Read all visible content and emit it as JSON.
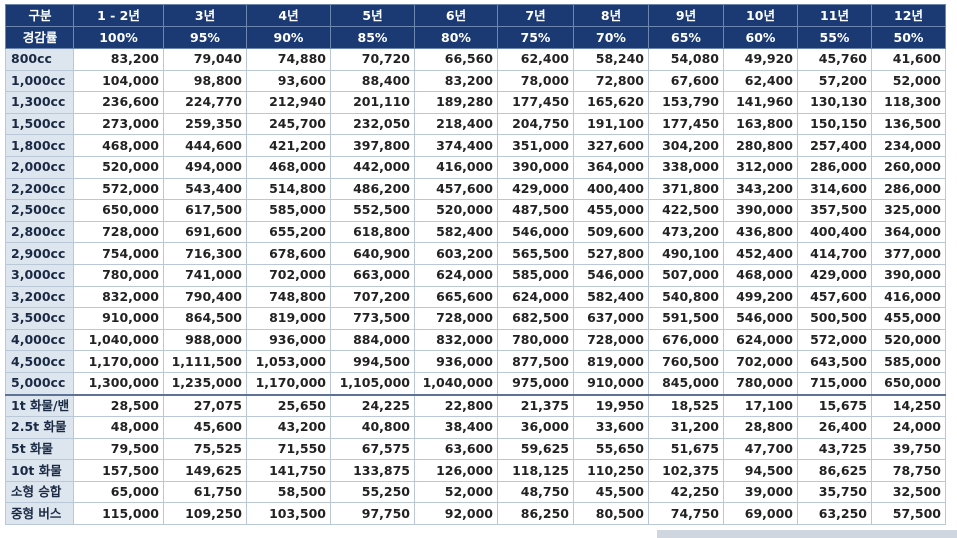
{
  "header": [
    "구분",
    "1 - 2년",
    "3년",
    "4년",
    "5년",
    "6년",
    "7년",
    "8년",
    "9년",
    "10년",
    "11년",
    "12년"
  ],
  "reduction": {
    "label": "경감률",
    "values": [
      "100%",
      "95%",
      "90%",
      "85%",
      "80%",
      "75%",
      "70%",
      "65%",
      "60%",
      "55%",
      "50%"
    ]
  },
  "passenger_rows": [
    {
      "label": "800cc",
      "values": [
        "83,200",
        "79,040",
        "74,880",
        "70,720",
        "66,560",
        "62,400",
        "58,240",
        "54,080",
        "49,920",
        "45,760",
        "41,600"
      ]
    },
    {
      "label": "1,000cc",
      "values": [
        "104,000",
        "98,800",
        "93,600",
        "88,400",
        "83,200",
        "78,000",
        "72,800",
        "67,600",
        "62,400",
        "57,200",
        "52,000"
      ]
    },
    {
      "label": "1,300cc",
      "values": [
        "236,600",
        "224,770",
        "212,940",
        "201,110",
        "189,280",
        "177,450",
        "165,620",
        "153,790",
        "141,960",
        "130,130",
        "118,300"
      ]
    },
    {
      "label": "1,500cc",
      "values": [
        "273,000",
        "259,350",
        "245,700",
        "232,050",
        "218,400",
        "204,750",
        "191,100",
        "177,450",
        "163,800",
        "150,150",
        "136,500"
      ]
    },
    {
      "label": "1,800cc",
      "values": [
        "468,000",
        "444,600",
        "421,200",
        "397,800",
        "374,400",
        "351,000",
        "327,600",
        "304,200",
        "280,800",
        "257,400",
        "234,000"
      ]
    },
    {
      "label": "2,000cc",
      "values": [
        "520,000",
        "494,000",
        "468,000",
        "442,000",
        "416,000",
        "390,000",
        "364,000",
        "338,000",
        "312,000",
        "286,000",
        "260,000"
      ]
    },
    {
      "label": "2,200cc",
      "values": [
        "572,000",
        "543,400",
        "514,800",
        "486,200",
        "457,600",
        "429,000",
        "400,400",
        "371,800",
        "343,200",
        "314,600",
        "286,000"
      ]
    },
    {
      "label": "2,500cc",
      "values": [
        "650,000",
        "617,500",
        "585,000",
        "552,500",
        "520,000",
        "487,500",
        "455,000",
        "422,500",
        "390,000",
        "357,500",
        "325,000"
      ]
    },
    {
      "label": "2,800cc",
      "values": [
        "728,000",
        "691,600",
        "655,200",
        "618,800",
        "582,400",
        "546,000",
        "509,600",
        "473,200",
        "436,800",
        "400,400",
        "364,000"
      ]
    },
    {
      "label": "2,900cc",
      "values": [
        "754,000",
        "716,300",
        "678,600",
        "640,900",
        "603,200",
        "565,500",
        "527,800",
        "490,100",
        "452,400",
        "414,700",
        "377,000"
      ]
    },
    {
      "label": "3,000cc",
      "values": [
        "780,000",
        "741,000",
        "702,000",
        "663,000",
        "624,000",
        "585,000",
        "546,000",
        "507,000",
        "468,000",
        "429,000",
        "390,000"
      ]
    },
    {
      "label": "3,200cc",
      "values": [
        "832,000",
        "790,400",
        "748,800",
        "707,200",
        "665,600",
        "624,000",
        "582,400",
        "540,800",
        "499,200",
        "457,600",
        "416,000"
      ]
    },
    {
      "label": "3,500cc",
      "values": [
        "910,000",
        "864,500",
        "819,000",
        "773,500",
        "728,000",
        "682,500",
        "637,000",
        "591,500",
        "546,000",
        "500,500",
        "455,000"
      ]
    },
    {
      "label": "4,000cc",
      "values": [
        "1,040,000",
        "988,000",
        "936,000",
        "884,000",
        "832,000",
        "780,000",
        "728,000",
        "676,000",
        "624,000",
        "572,000",
        "520,000"
      ]
    },
    {
      "label": "4,500cc",
      "values": [
        "1,170,000",
        "1,111,500",
        "1,053,000",
        "994,500",
        "936,000",
        "877,500",
        "819,000",
        "760,500",
        "702,000",
        "643,500",
        "585,000"
      ]
    },
    {
      "label": "5,000cc",
      "values": [
        "1,300,000",
        "1,235,000",
        "1,170,000",
        "1,105,000",
        "1,040,000",
        "975,000",
        "910,000",
        "845,000",
        "780,000",
        "715,000",
        "650,000"
      ]
    }
  ],
  "commercial_rows": [
    {
      "label": "1t 화물/밴",
      "values": [
        "28,500",
        "27,075",
        "25,650",
        "24,225",
        "22,800",
        "21,375",
        "19,950",
        "18,525",
        "17,100",
        "15,675",
        "14,250"
      ]
    },
    {
      "label": "2.5t 화물",
      "values": [
        "48,000",
        "45,600",
        "43,200",
        "40,800",
        "38,400",
        "36,000",
        "33,600",
        "31,200",
        "28,800",
        "26,400",
        "24,000"
      ]
    },
    {
      "label": "5t 화물",
      "values": [
        "79,500",
        "75,525",
        "71,550",
        "67,575",
        "63,600",
        "59,625",
        "55,650",
        "51,675",
        "47,700",
        "43,725",
        "39,750"
      ]
    },
    {
      "label": "10t 화물",
      "values": [
        "157,500",
        "149,625",
        "141,750",
        "133,875",
        "126,000",
        "118,125",
        "110,250",
        "102,375",
        "94,500",
        "86,625",
        "78,750"
      ]
    },
    {
      "label": "소형 승합",
      "values": [
        "65,000",
        "61,750",
        "58,500",
        "55,250",
        "52,000",
        "48,750",
        "45,500",
        "42,250",
        "39,000",
        "35,750",
        "32,500"
      ]
    },
    {
      "label": "중형 버스",
      "values": [
        "115,000",
        "109,250",
        "103,500",
        "97,750",
        "92,000",
        "86,250",
        "80,500",
        "74,750",
        "69,000",
        "63,250",
        "57,500"
      ]
    }
  ]
}
